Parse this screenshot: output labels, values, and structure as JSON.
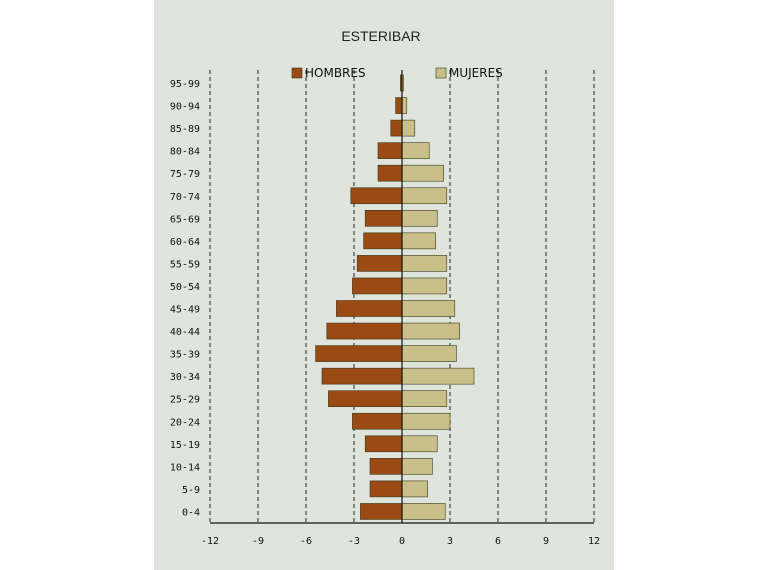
{
  "chart_data": {
    "type": "bar",
    "title": "ESTERIBAR",
    "xlim": [
      -12,
      12
    ],
    "xticks": [
      "-12",
      "-9",
      "-6",
      "-3",
      "0",
      "3",
      "6",
      "9",
      "12"
    ],
    "categories": [
      "95-99",
      "90-94",
      "85-89",
      "80-84",
      "75-79",
      "70-74",
      "65-69",
      "60-64",
      "55-59",
      "50-54",
      "45-49",
      "40-44",
      "35-39",
      "30-34",
      "25-29",
      "20-24",
      "15-19",
      "10-14",
      "5-9",
      "0-4"
    ],
    "series": [
      {
        "name": "HOMBRES",
        "color": "#9a4a12",
        "values": [
          -0.1,
          -0.4,
          -0.7,
          -1.5,
          -1.5,
          -3.2,
          -2.3,
          -2.4,
          -2.8,
          -3.1,
          -4.1,
          -4.7,
          -5.4,
          -5.0,
          -4.6,
          -3.1,
          -2.3,
          -2.0,
          -2.0,
          -2.6
        ]
      },
      {
        "name": "MUJERES",
        "color": "#c8c088",
        "values": [
          0.1,
          0.3,
          0.8,
          1.7,
          2.6,
          2.8,
          2.2,
          2.1,
          2.8,
          2.8,
          3.3,
          3.6,
          3.4,
          4.5,
          2.8,
          3.0,
          2.2,
          1.9,
          1.6,
          2.7
        ]
      }
    ],
    "grid": "vertical-dashed",
    "legend": "top"
  }
}
